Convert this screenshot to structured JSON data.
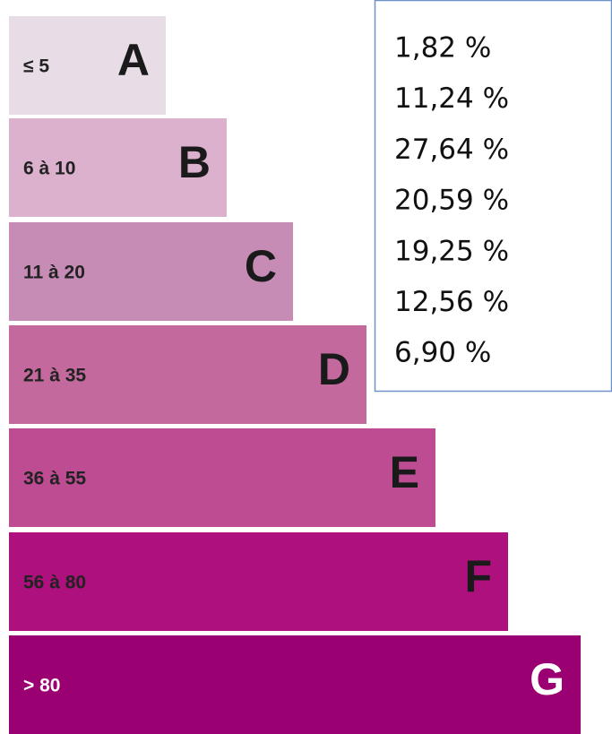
{
  "bands": [
    {
      "range": "≤ 5",
      "letter": "A"
    },
    {
      "range": "6 à 10",
      "letter": "B"
    },
    {
      "range": "11 à 20",
      "letter": "C"
    },
    {
      "range": "21 à 35",
      "letter": "D"
    },
    {
      "range": "36 à 55",
      "letter": "E"
    },
    {
      "range": "56 à 80",
      "letter": "F"
    },
    {
      "range": "> 80",
      "letter": "G"
    }
  ],
  "percentages": [
    "1,82 %",
    "11,24 %",
    "27,64 %",
    "20,59 %",
    "19,25 %",
    "12,56 %",
    "6,90 %"
  ]
}
